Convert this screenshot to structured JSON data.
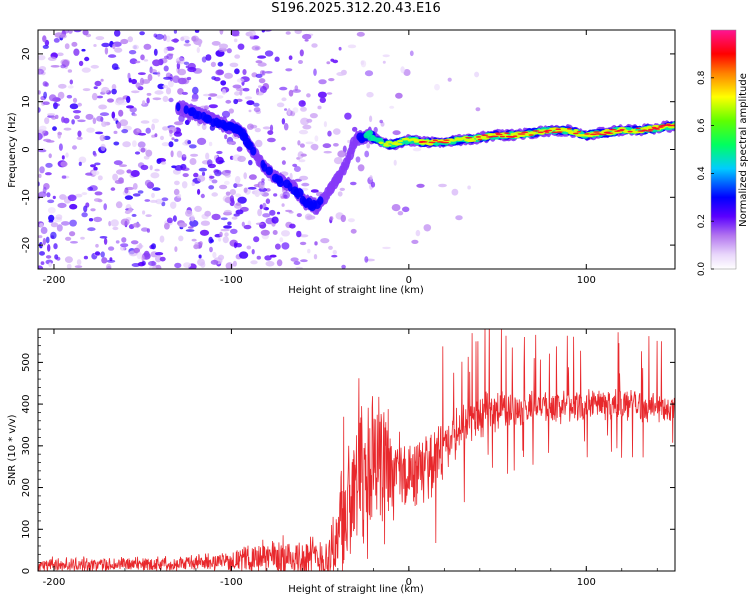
{
  "title": "S196.2025.312.20.43.E16",
  "colors": {
    "frame": "#000000",
    "snr_line": "#e8282c",
    "colormap": [
      "#f2e8fb",
      "#d9b7f3",
      "#b072ec",
      "#8a2be2",
      "#3f00ff",
      "#0050ff",
      "#00d0ff",
      "#00ff80",
      "#80ff00",
      "#ffff00",
      "#ff8000",
      "#ff1010",
      "#ff0070",
      "#ff2090"
    ]
  },
  "chart_data": [
    {
      "type": "heatmap",
      "name": "spectrogram",
      "xlabel": "Height of straight line (km)",
      "ylabel": "Frequency (Hz)",
      "xlim": [
        -209,
        150
      ],
      "ylim": [
        -25,
        25
      ],
      "xticks": [
        -200,
        -100,
        0,
        100
      ],
      "xtick_labels": [
        "-200",
        "-100",
        "0",
        "100"
      ],
      "yticks": [
        -20,
        -10,
        0,
        10,
        20
      ],
      "ytick_labels": [
        "-20",
        "-10",
        "0",
        "10",
        "20"
      ],
      "colorbar": {
        "label": "Normalized spectral amplitude",
        "range": [
          0,
          1
        ],
        "ticks": [
          0.0,
          0.2,
          0.4,
          0.6,
          0.8
        ],
        "tick_labels": [
          "0.0",
          "0.2",
          "0.4",
          "0.6",
          "0.8"
        ]
      },
      "ridge": {
        "x": [
          -130,
          -110,
          -95,
          -85,
          -75,
          -65,
          -58,
          -52,
          -45,
          -38,
          -30,
          -22,
          -15,
          -10,
          0,
          10,
          20,
          30,
          40,
          50,
          60,
          70,
          80,
          90,
          100,
          110,
          120,
          130,
          140,
          150
        ],
        "freq": [
          9,
          6,
          4,
          -2,
          -6,
          -8,
          -11,
          -12,
          -9,
          -5,
          2,
          3,
          1.5,
          1,
          2,
          1.5,
          1.5,
          2,
          2.5,
          3,
          3,
          3.5,
          4,
          4,
          3,
          3.5,
          4,
          4,
          4.5,
          5
        ],
        "amplitude": [
          0.2,
          0.25,
          0.3,
          0.2,
          0.22,
          0.25,
          0.3,
          0.2,
          0.2,
          0.15,
          0.15,
          0.45,
          0.55,
          0.7,
          0.75,
          0.85,
          0.8,
          0.7,
          0.75,
          0.8,
          0.9,
          0.8,
          0.85,
          0.8,
          0.75,
          0.85,
          0.8,
          0.9,
          0.9,
          0.8
        ]
      }
    },
    {
      "type": "line",
      "name": "snr",
      "xlabel": "Height of straight line (km)",
      "ylabel": "SNR (10 * v/v)",
      "xlim": [
        -209,
        150
      ],
      "ylim": [
        0,
        580
      ],
      "xticks": [
        -200,
        -100,
        0,
        100
      ],
      "xtick_labels": [
        "-200",
        "-100",
        "0",
        "100"
      ],
      "yticks": [
        0,
        100,
        200,
        300,
        400,
        500
      ],
      "ytick_labels": [
        "0",
        "100",
        "200",
        "300",
        "400",
        "500"
      ],
      "envelope": {
        "x": [
          -209,
          -180,
          -150,
          -120,
          -100,
          -80,
          -60,
          -45,
          -38,
          -30,
          -20,
          -10,
          0,
          10,
          20,
          30,
          40,
          50,
          60,
          80,
          100,
          120,
          150
        ],
        "baseline": [
          15,
          15,
          17,
          20,
          25,
          35,
          30,
          30,
          120,
          180,
          200,
          220,
          230,
          250,
          290,
          340,
          370,
          385,
          390,
          395,
          400,
          400,
          390
        ],
        "spread": [
          20,
          20,
          20,
          22,
          25,
          50,
          60,
          70,
          200,
          230,
          200,
          150,
          100,
          90,
          80,
          70,
          60,
          55,
          50,
          45,
          45,
          45,
          40
        ]
      }
    }
  ]
}
